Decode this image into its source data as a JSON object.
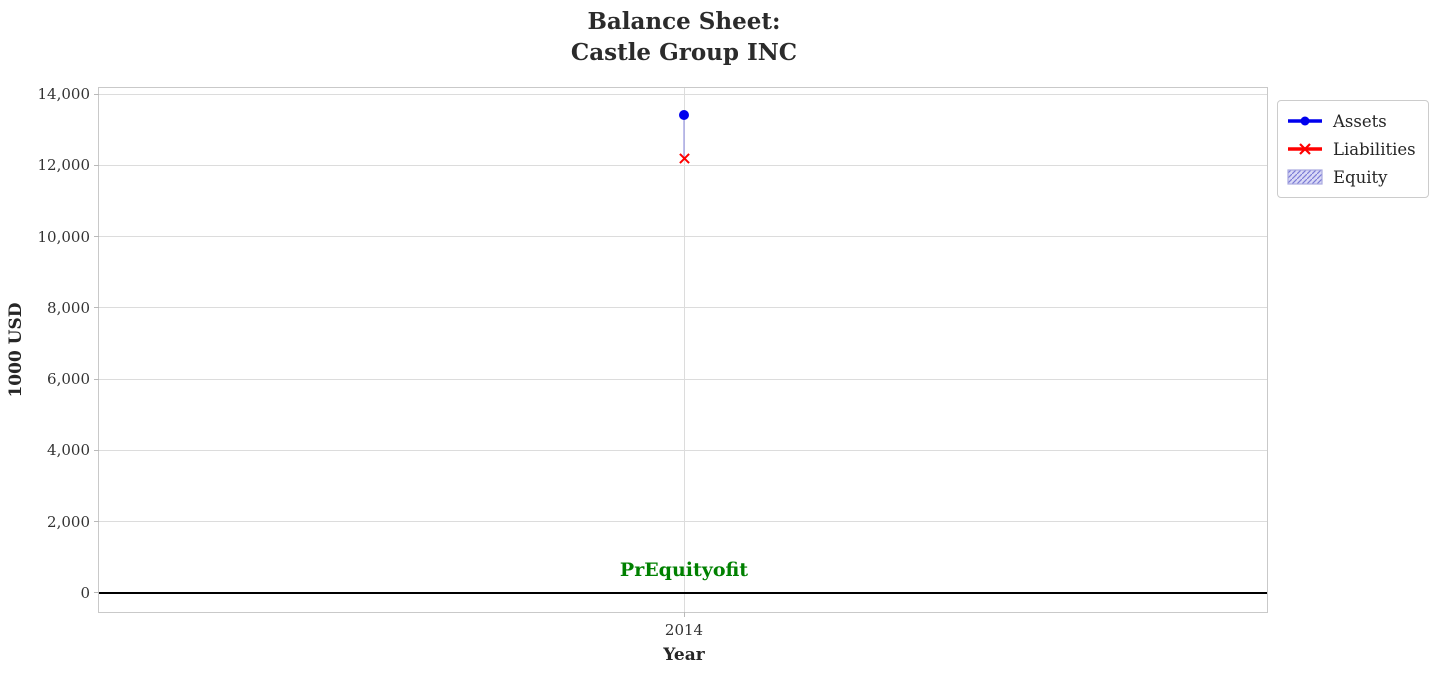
{
  "title": {
    "line1": "Balance Sheet:",
    "line2": "Castle Group INC"
  },
  "axes": {
    "xlabel": "Year",
    "ylabel": "1000 USD",
    "x_tick_labels": [
      "2014"
    ],
    "y_tick_labels": [
      "0",
      "2,000",
      "4,000",
      "6,000",
      "8,000",
      "10,000",
      "12,000",
      "14,000"
    ]
  },
  "legend": {
    "items": [
      {
        "label": "Assets",
        "marker": "circle-on-line",
        "color": "#0000ee"
      },
      {
        "label": "Liabilities",
        "marker": "x-on-line",
        "color": "#ff0000"
      },
      {
        "label": "Equity",
        "marker": "hatched-patch",
        "color": "#ccccf2"
      }
    ]
  },
  "annotation": {
    "text": "PrEquityofit",
    "color": "#008000"
  },
  "colors": {
    "assets": "#0000ee",
    "liabilities": "#ff0000",
    "equity_fill": "#ccccf2",
    "equity_hatch": "#7b7bd6",
    "grid": "#dcdcdc",
    "zero_line": "#000000",
    "text": "#262626"
  },
  "chart_data": {
    "type": "scatter",
    "x": [
      2014
    ],
    "series": [
      {
        "name": "Assets",
        "values": [
          13400
        ],
        "color": "#0000ee",
        "marker": "circle"
      },
      {
        "name": "Liabilities",
        "values": [
          12200
        ],
        "color": "#ff0000",
        "marker": "x"
      },
      {
        "name": "Equity",
        "values": [
          1200
        ],
        "color": "#ccccf2",
        "style": "hatched-area"
      }
    ],
    "title": "Balance Sheet: Castle Group INC",
    "xlabel": "Year",
    "ylabel": "1000 USD",
    "ylim": [
      -590,
      14170
    ],
    "yticks": [
      0,
      2000,
      4000,
      6000,
      8000,
      10000,
      12000,
      14000
    ],
    "xticks": [
      2014
    ],
    "grid": true,
    "legend_position": "upper-right-outside",
    "annotation": {
      "text": "PrEquityofit",
      "x": 2014,
      "y": 645,
      "color": "#008000"
    },
    "zero_line": true
  }
}
